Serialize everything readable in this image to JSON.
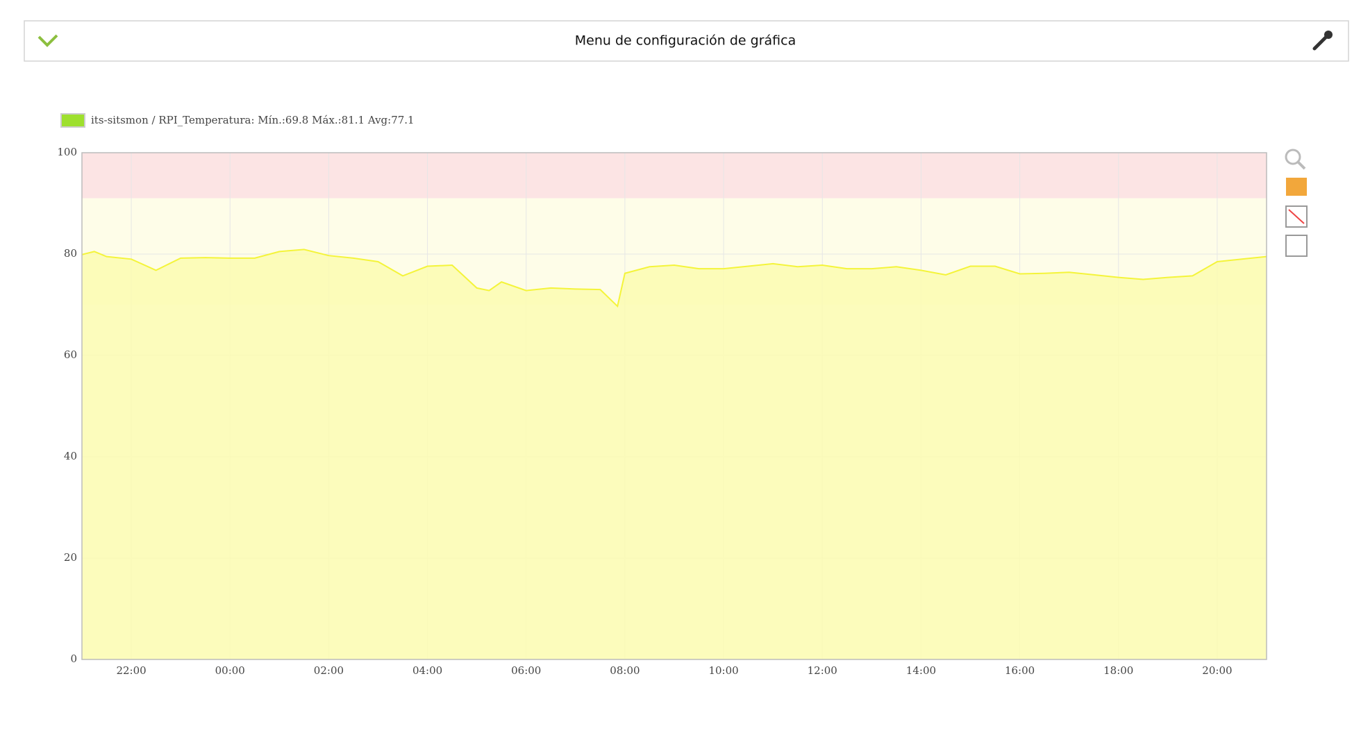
{
  "header": {
    "title": "Menu de configuración de gráfica"
  },
  "chart_data": {
    "type": "area",
    "x": [
      0,
      0.25,
      0.5,
      1,
      1.5,
      2,
      2.5,
      3,
      3.5,
      4,
      4.5,
      5,
      5.5,
      6,
      6.5,
      7,
      7.5,
      8,
      8.25,
      8.5,
      9,
      9.5,
      10,
      10.5,
      10.85,
      11,
      11.5,
      12,
      12.5,
      13,
      13.5,
      14,
      14.5,
      15,
      15.5,
      16,
      16.5,
      17,
      17.5,
      18,
      18.5,
      19,
      19.5,
      20,
      20.5,
      21,
      21.5,
      22,
      22.5,
      23,
      23.5,
      24
    ],
    "series": [
      {
        "name": "its-sitsmon / RPI_Temperatura: Mín.:69.8 Máx.:81.1 Avg:77.1",
        "color": "#f4f43a",
        "fill": "#fcfcb0",
        "legend_color": "#9ee02e",
        "values": [
          79.9,
          80.5,
          79.5,
          79.0,
          76.8,
          79.2,
          79.3,
          79.2,
          79.2,
          80.5,
          80.9,
          79.7,
          79.2,
          78.5,
          75.7,
          77.6,
          77.8,
          73.3,
          72.8,
          74.5,
          72.8,
          73.3,
          73.1,
          73.0,
          69.7,
          76.2,
          77.5,
          77.8,
          77.1,
          77.1,
          77.6,
          78.1,
          77.5,
          77.8,
          77.1,
          77.1,
          77.5,
          76.8,
          75.9,
          77.6,
          77.6,
          76.1,
          76.2,
          76.4,
          75.9,
          75.4,
          75.0,
          75.4,
          75.7,
          78.5,
          79.0,
          79.5
        ]
      }
    ],
    "thresholds": [
      {
        "from": 91,
        "to": 100,
        "color": "#fce4e4"
      },
      {
        "from": 70,
        "to": 91,
        "color": "#fefde8"
      }
    ],
    "xlim": [
      0,
      24
    ],
    "xticks": [
      {
        "value": 1,
        "label": "22:00"
      },
      {
        "value": 3,
        "label": "00:00"
      },
      {
        "value": 5,
        "label": "02:00"
      },
      {
        "value": 7,
        "label": "04:00"
      },
      {
        "value": 9,
        "label": "06:00"
      },
      {
        "value": 11,
        "label": "08:00"
      },
      {
        "value": 13,
        "label": "10:00"
      },
      {
        "value": 15,
        "label": "12:00"
      },
      {
        "value": 17,
        "label": "14:00"
      },
      {
        "value": 19,
        "label": "16:00"
      },
      {
        "value": 21,
        "label": "18:00"
      },
      {
        "value": 23,
        "label": "20:00"
      }
    ],
    "ylim": [
      0,
      100
    ],
    "yticks": [
      0,
      20,
      40,
      60,
      80,
      100
    ],
    "grid": true
  }
}
